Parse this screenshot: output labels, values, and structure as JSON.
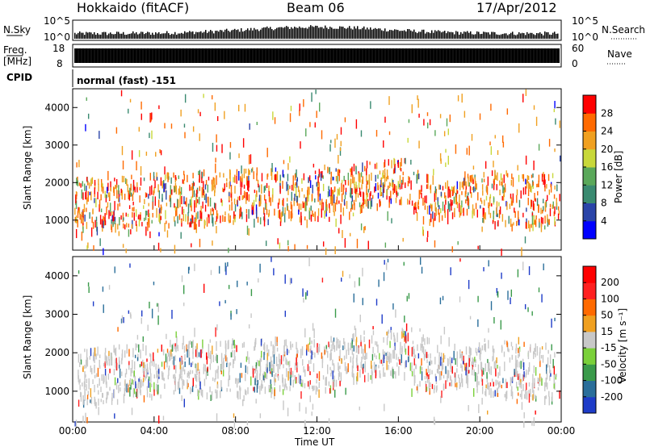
{
  "header": {
    "radar": "Hokkaido (fitACF)",
    "beam": "Beam 06",
    "date": "17/Apr/2012"
  },
  "strips": {
    "nsky_label": "N.Sky",
    "nsky_ticks": [
      "10^5",
      "10^0"
    ],
    "nsearch_label": "N.Search",
    "nsearch_ticks": [
      "10^5",
      "10^0"
    ],
    "freq_label_1": "Freq.",
    "freq_label_2": "[MHz]",
    "freq_ticks": [
      "18",
      "8"
    ],
    "nave_label": "Nave",
    "nave_ticks": [
      "60",
      "0"
    ],
    "cpid_label": "CPID",
    "cpid_text": "normal (fast) -151"
  },
  "chart_data": [
    {
      "type": "heatmap",
      "name": "power",
      "ylabel": "Slant Range [km]",
      "y_ticks": [
        "1000",
        "2000",
        "3000",
        "4000"
      ],
      "ylim": [
        200,
        4500
      ],
      "colorbar": {
        "label": "Power [dB]",
        "ticks": [
          "28",
          "24",
          "20",
          "16",
          "12",
          "8",
          "4"
        ],
        "range": [
          0,
          32
        ],
        "colors": [
          "#0000ff",
          "#2a44a8",
          "#3a8a70",
          "#5aa85a",
          "#c8d83a",
          "#f0a020",
          "#ff6a00",
          "#ff0000"
        ]
      }
    },
    {
      "type": "heatmap",
      "name": "velocity",
      "ylabel": "Slant Range [km]",
      "y_ticks": [
        "1000",
        "2000",
        "3000",
        "4000"
      ],
      "ylim": [
        200,
        4500
      ],
      "xlabel": "Time UT",
      "x_ticks": [
        "00:00",
        "04:00",
        "08:00",
        "12:00",
        "16:00",
        "20:00",
        "00:00"
      ],
      "colorbar": {
        "label": "Velocity [m s⁻¹]",
        "ticks": [
          "200",
          "100",
          "50",
          "15",
          "-15",
          "-50",
          "-100",
          "-200"
        ],
        "colors": [
          "#1e3cc8",
          "#2a6e9a",
          "#3a9a4a",
          "#7ad03a",
          "#c8c8c8",
          "#f0a020",
          "#ff6a00",
          "#ff2020",
          "#ff0000"
        ]
      }
    }
  ]
}
